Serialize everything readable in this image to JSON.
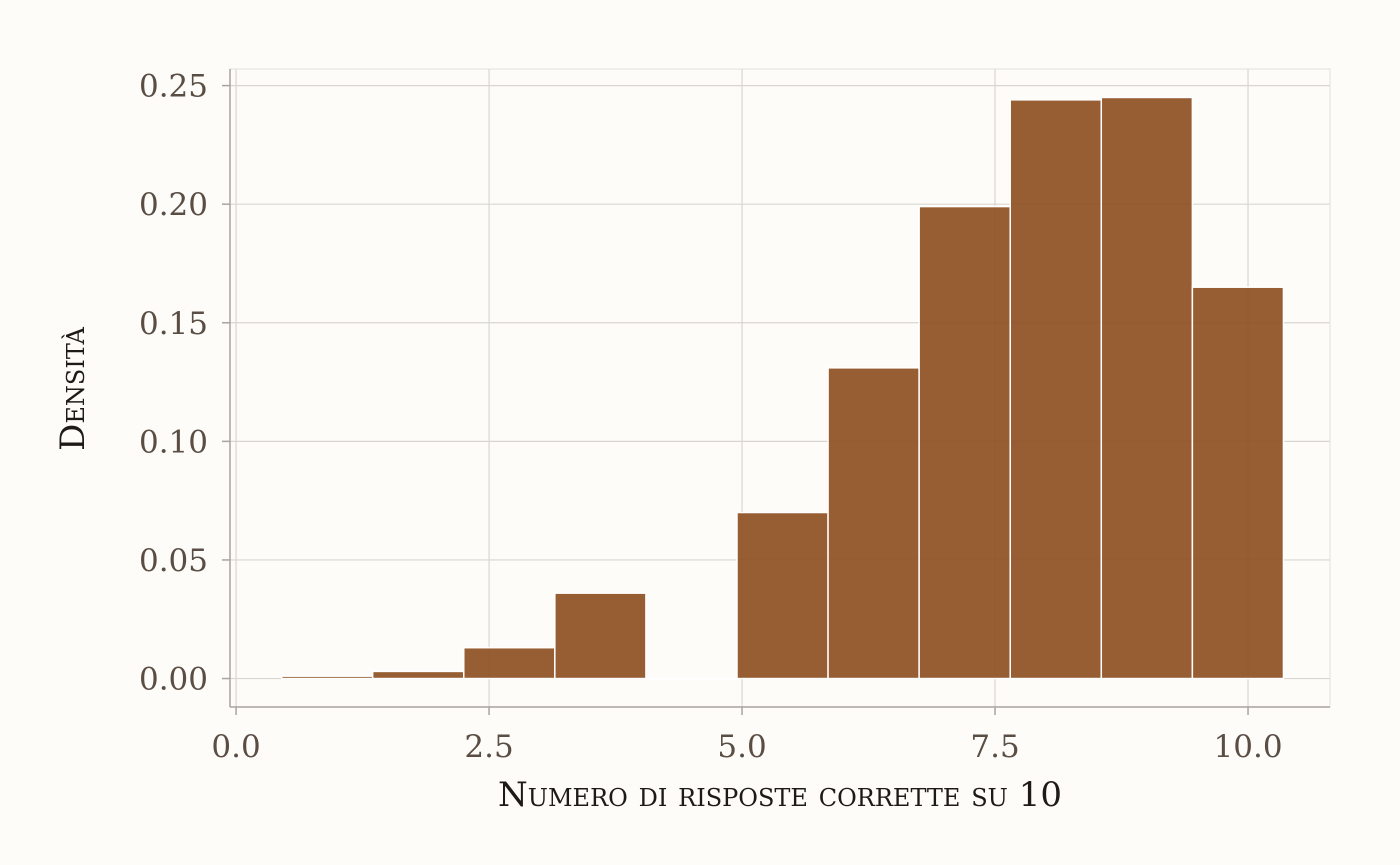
{
  "chart_data": {
    "type": "bar",
    "title": "",
    "xlabel": "Numero di risposte corrette su 10",
    "ylabel": "Densità",
    "bins": [
      {
        "x0": 0.45,
        "x1": 1.35,
        "density": 0.001
      },
      {
        "x0": 1.35,
        "x1": 2.25,
        "density": 0.003
      },
      {
        "x0": 2.25,
        "x1": 3.15,
        "density": 0.013
      },
      {
        "x0": 3.15,
        "x1": 4.05,
        "density": 0.036
      },
      {
        "x0": 4.05,
        "x1": 4.95,
        "density": 0.0
      },
      {
        "x0": 4.95,
        "x1": 5.85,
        "density": 0.07
      },
      {
        "x0": 5.85,
        "x1": 6.75,
        "density": 0.131
      },
      {
        "x0": 6.75,
        "x1": 7.65,
        "density": 0.199
      },
      {
        "x0": 7.65,
        "x1": 8.55,
        "density": 0.244
      },
      {
        "x0": 8.55,
        "x1": 9.45,
        "density": 0.245
      },
      {
        "x0": 9.45,
        "x1": 10.35,
        "density": 0.165
      }
    ],
    "xlim": [
      -0.06,
      10.81
    ],
    "ylim": [
      -0.012,
      0.257
    ],
    "xticks": [
      0.0,
      2.5,
      5.0,
      7.5,
      10.0
    ],
    "xtick_labels": [
      "0.0",
      "2.5",
      "5.0",
      "7.5",
      "10.0"
    ],
    "yticks": [
      0.0,
      0.05,
      0.1,
      0.15,
      0.2,
      0.25
    ],
    "ytick_labels": [
      "0.00",
      "0.05",
      "0.10",
      "0.15",
      "0.20",
      "0.25"
    ],
    "grid": true,
    "colors": {
      "bar_fill": "#8e4f22",
      "bar_stroke": "#ffffff",
      "axis": "#a8a49f"
    }
  }
}
